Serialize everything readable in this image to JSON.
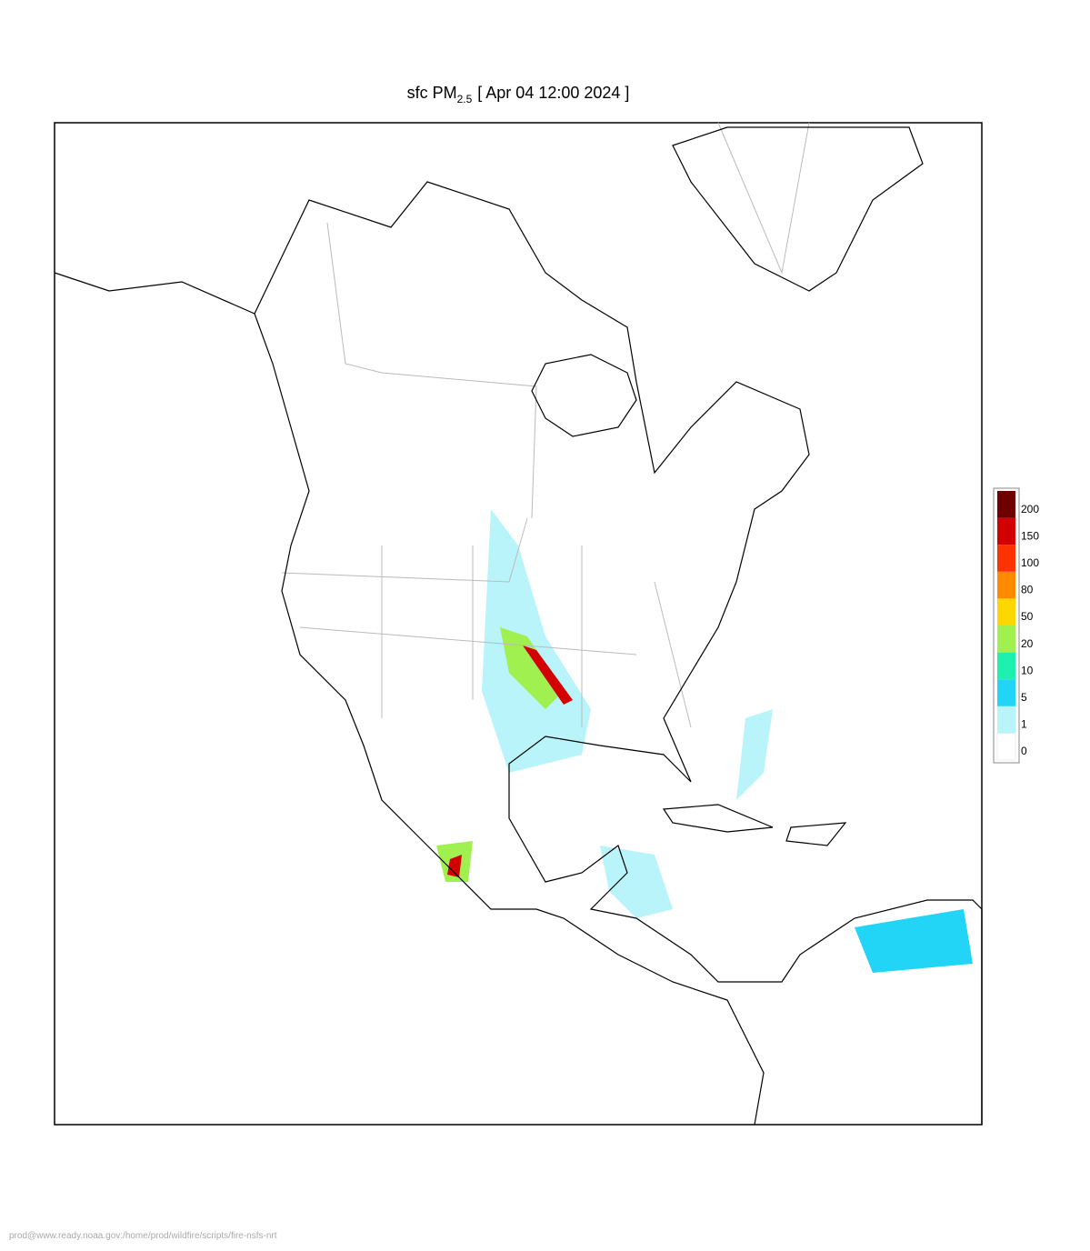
{
  "title": {
    "prefix": "sfc PM",
    "subscript": "2.5",
    "suffix": "[ Apr 04 12:00 2024 ]"
  },
  "colorbar": {
    "levels": [
      0,
      1,
      5,
      10,
      20,
      50,
      80,
      100,
      150,
      200
    ],
    "colors": [
      "#ffffff",
      "#b8f4f9",
      "#22d4f5",
      "#1ef0b0",
      "#a0f050",
      "#ffd700",
      "#ff8a00",
      "#ff3300",
      "#d20000",
      "#6e0000"
    ]
  },
  "footer": "prod@www.ready.noaa.gov:/home/prod/wildfire/scripts/fire-nsfs-nrt"
}
